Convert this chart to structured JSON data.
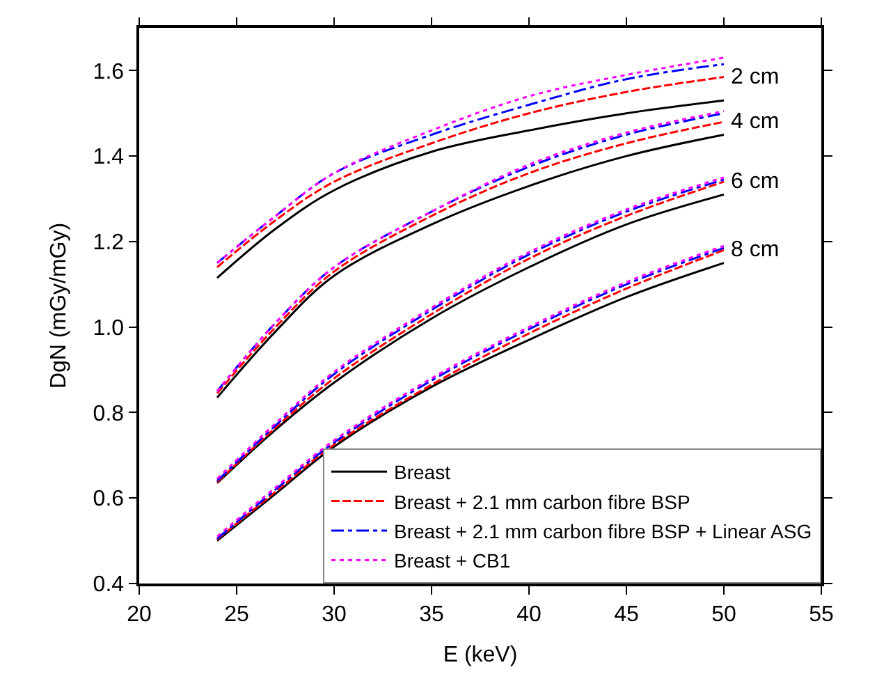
{
  "chart_data": {
    "type": "line",
    "xlabel": "E (keV)",
    "ylabel": "DgN (mGy/mGy)",
    "xlim": [
      20,
      55
    ],
    "ylim": [
      0.4,
      1.7
    ],
    "xticks": [
      20,
      25,
      30,
      35,
      40,
      45,
      50,
      55
    ],
    "yticks": [
      0.4,
      0.6,
      0.8,
      {
        "value": 1.0,
        "label": "1.0"
      },
      1.2,
      1.4,
      1.6
    ],
    "x": [
      24,
      27,
      30,
      35,
      40,
      45,
      50
    ],
    "legend": "bottom right",
    "marker": "none",
    "series": [
      {
        "name": "Breast",
        "color": "#000000",
        "line_style": "solid",
        "values": [
          1.115,
          1.23,
          1.32,
          1.41,
          1.46,
          1.5,
          1.53
        ]
      },
      {
        "name": "Breast + 2.1 mm carbon fibre BSP",
        "color": "#ff0000",
        "line_style": "dashed",
        "values": [
          1.14,
          1.25,
          1.34,
          1.43,
          1.5,
          1.55,
          1.585
        ]
      },
      {
        "name": "Breast + 2.1 mm carbon fibre BSP + Linear ASG",
        "color": "#0000ff",
        "line_style": "dashdot",
        "values": [
          1.15,
          1.26,
          1.36,
          1.45,
          1.52,
          1.58,
          1.615
        ]
      },
      {
        "name": "Breast + CB1",
        "color": "#ff00ff",
        "line_style": "dotted",
        "values": [
          1.15,
          1.26,
          1.36,
          1.46,
          1.54,
          1.59,
          1.63
        ]
      },
      {
        "color": "#000000",
        "line_style": "solid",
        "values": [
          0.835,
          0.99,
          1.12,
          1.24,
          1.33,
          1.4,
          1.45
        ]
      },
      {
        "color": "#ff0000",
        "line_style": "dashed",
        "values": [
          0.845,
          1.0,
          1.13,
          1.26,
          1.36,
          1.43,
          1.48
        ]
      },
      {
        "color": "#0000ff",
        "line_style": "dashdot",
        "values": [
          0.85,
          1.01,
          1.14,
          1.27,
          1.375,
          1.45,
          1.5
        ]
      },
      {
        "color": "#ff00ff",
        "line_style": "dotted",
        "values": [
          0.85,
          1.01,
          1.14,
          1.27,
          1.38,
          1.455,
          1.505
        ]
      },
      {
        "color": "#000000",
        "line_style": "solid",
        "values": [
          0.635,
          0.76,
          0.87,
          1.02,
          1.14,
          1.24,
          1.31
        ]
      },
      {
        "color": "#ff0000",
        "line_style": "dashed",
        "values": [
          0.637,
          0.765,
          0.88,
          1.03,
          1.16,
          1.26,
          1.34
        ]
      },
      {
        "color": "#0000ff",
        "line_style": "dashdot",
        "values": [
          0.64,
          0.77,
          0.89,
          1.04,
          1.17,
          1.27,
          1.345
        ]
      },
      {
        "color": "#ff00ff",
        "line_style": "dotted",
        "values": [
          0.645,
          0.775,
          0.895,
          1.045,
          1.175,
          1.275,
          1.35
        ]
      },
      {
        "color": "#000000",
        "line_style": "solid",
        "values": [
          0.5,
          0.61,
          0.72,
          0.86,
          0.97,
          1.07,
          1.15
        ]
      },
      {
        "color": "#ff0000",
        "line_style": "dashed",
        "values": [
          0.503,
          0.615,
          0.725,
          0.865,
          0.985,
          1.09,
          1.18
        ]
      },
      {
        "color": "#0000ff",
        "line_style": "dashdot",
        "values": [
          0.505,
          0.62,
          0.73,
          0.875,
          0.995,
          1.1,
          1.185
        ]
      },
      {
        "color": "#ff00ff",
        "line_style": "dotted",
        "values": [
          0.51,
          0.625,
          0.735,
          0.88,
          1.0,
          1.105,
          1.19
        ]
      }
    ],
    "annotations": [
      "2 cm",
      "4 cm",
      "6 cm",
      "8 cm"
    ]
  }
}
